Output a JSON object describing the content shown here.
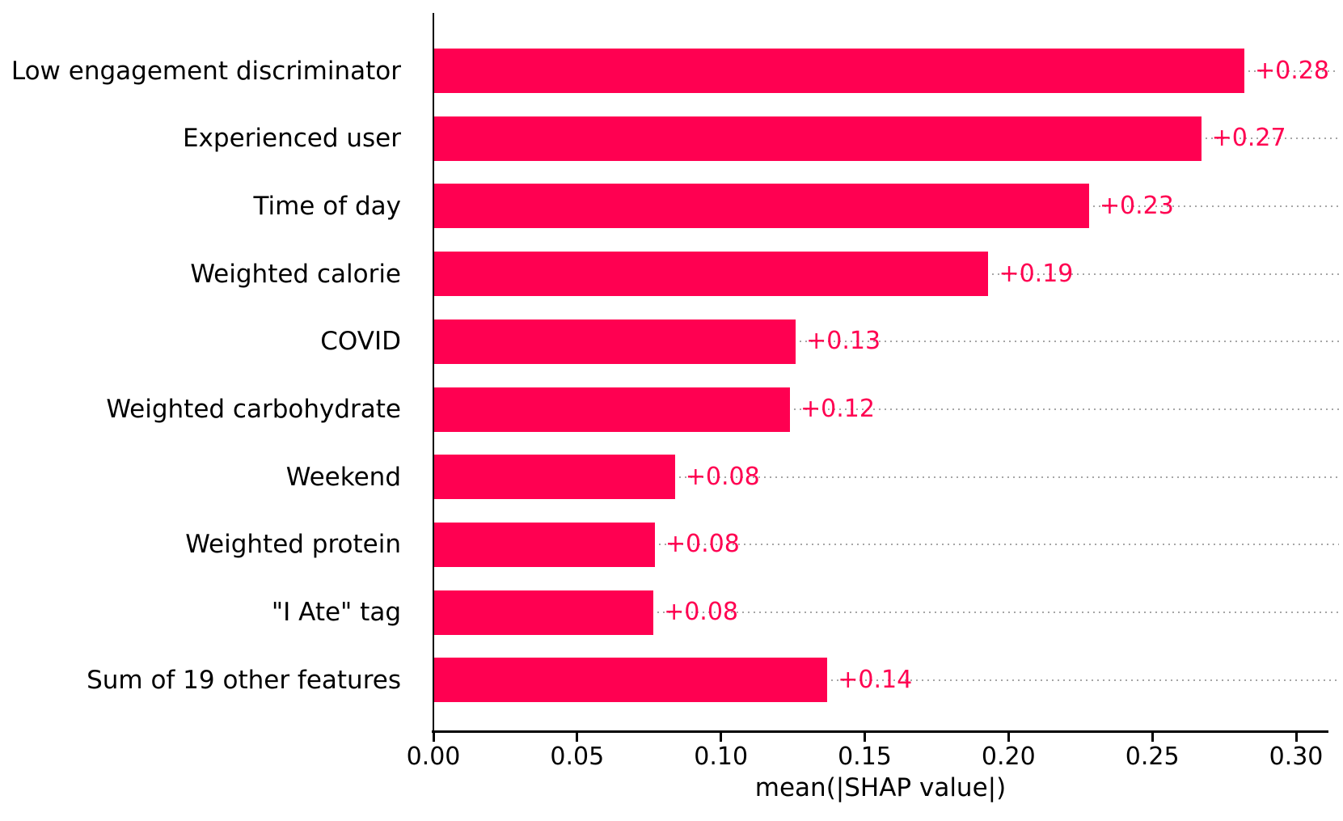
{
  "figure": {
    "background": "#ffffff"
  },
  "chart_data": {
    "type": "bar",
    "orientation": "horizontal",
    "title": "",
    "xlabel": "mean(|SHAP value|)",
    "ylabel": "",
    "categories": [
      "Low engagement discriminator",
      "Experienced user",
      "Time of day",
      "Weighted calorie",
      "COVID",
      "Weighted carbohydrate",
      "Weekend",
      "Weighted protein",
      "\"I Ate\" tag",
      "Sum of 19 other features"
    ],
    "values": [
      0.282,
      0.267,
      0.228,
      0.193,
      0.126,
      0.124,
      0.084,
      0.077,
      0.0765,
      0.137
    ],
    "value_labels": [
      "+0.28",
      "+0.27",
      "+0.23",
      "+0.19",
      "+0.13",
      "+0.12",
      "+0.08",
      "+0.08",
      "+0.08",
      "+0.14"
    ],
    "x_ticks": [
      0,
      0.05,
      0.1,
      0.15,
      0.2,
      0.25,
      0.3
    ],
    "x_tick_labels": [
      "0.00",
      "0.05",
      "0.10",
      "0.15",
      "0.20",
      "0.25",
      "0.30"
    ],
    "xlim": [
      0,
      0.311
    ],
    "bar_color": "#ff0051",
    "value_label_color": "#ff0051",
    "gridline_color": "#a6a6a6",
    "gridline_style": "dotted",
    "axis_color": "#000000",
    "text_color": "#000000",
    "legend": "none",
    "grid": "per-row dotted trailing lines from bar end to right edge"
  }
}
